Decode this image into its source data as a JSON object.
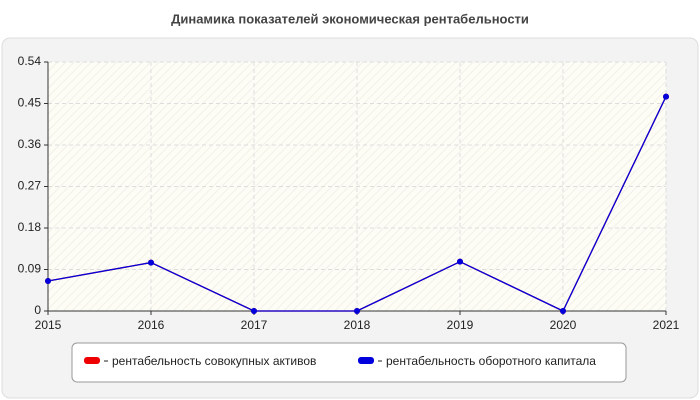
{
  "chart_data": {
    "type": "line",
    "title": "Динамика показателей экономическая рентабельности",
    "x": [
      2015,
      2016,
      2017,
      2018,
      2019,
      2020,
      2021
    ],
    "xlim": [
      2015,
      2021
    ],
    "xticks": [
      2015,
      2016,
      2017,
      2018,
      2019,
      2020,
      2021
    ],
    "ylim": [
      0,
      0.54
    ],
    "yticks": [
      0,
      0.09,
      0.18,
      0.27,
      0.36,
      0.45,
      0.54
    ],
    "grid": true,
    "series": [
      {
        "name": "рентабельность совокупных активов",
        "color": "#ee0000",
        "values": [
          0.065,
          0.105,
          0,
          0,
          0.107,
          0,
          0.465
        ]
      },
      {
        "name": "рентабельность оборотного капитала",
        "color": "#0000dd",
        "values": [
          0.065,
          0.105,
          0,
          0,
          0.107,
          0,
          0.465
        ]
      }
    ]
  }
}
